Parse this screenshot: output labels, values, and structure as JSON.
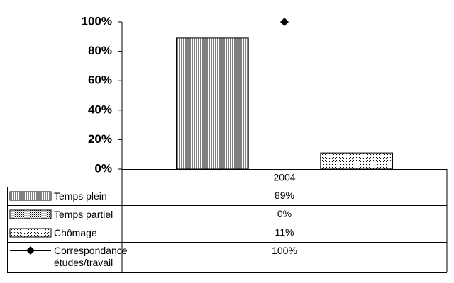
{
  "chart_data": {
    "type": "bar",
    "categories": [
      "2004"
    ],
    "series": [
      {
        "name": "Temps plein",
        "type": "bar",
        "color": "#000000",
        "pattern": "vertical-lines",
        "values": [
          89
        ],
        "value_labels": [
          "89%"
        ]
      },
      {
        "name": "Temps partiel",
        "type": "bar",
        "color": "#000000",
        "pattern": "dense-dots",
        "values": [
          0
        ],
        "value_labels": [
          "0%"
        ]
      },
      {
        "name": "Chômage",
        "type": "bar",
        "color": "#000000",
        "pattern": "sparse-dots",
        "values": [
          11
        ],
        "value_labels": [
          "11%"
        ]
      },
      {
        "name": "Correspondance études/travail",
        "type": "line",
        "marker": "diamond",
        "color": "#000000",
        "values": [
          100
        ],
        "value_labels": [
          "100%"
        ]
      }
    ],
    "ylim": [
      0,
      100
    ],
    "yticks": [
      {
        "value": 0,
        "label": "0%"
      },
      {
        "value": 20,
        "label": "20%"
      },
      {
        "value": 40,
        "label": "40%"
      },
      {
        "value": 60,
        "label": "60%"
      },
      {
        "value": 80,
        "label": "80%"
      },
      {
        "value": 100,
        "label": "100%"
      }
    ],
    "grid": false,
    "legend": "data-table"
  }
}
